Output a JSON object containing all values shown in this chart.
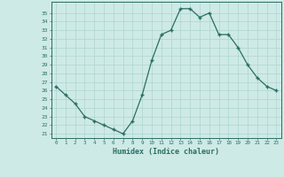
{
  "x": [
    0,
    1,
    2,
    3,
    4,
    5,
    6,
    7,
    8,
    9,
    10,
    11,
    12,
    13,
    14,
    15,
    16,
    17,
    18,
    19,
    20,
    21,
    22,
    23
  ],
  "y": [
    26.5,
    25.5,
    24.5,
    23.0,
    22.5,
    22.0,
    21.5,
    21.0,
    22.5,
    25.5,
    29.5,
    32.5,
    33.0,
    35.5,
    35.5,
    34.5,
    35.0,
    32.5,
    32.5,
    31.0,
    29.0,
    27.5,
    26.5,
    26.0
  ],
  "xlabel": "Humidex (Indice chaleur)",
  "line_color": "#2a6e63",
  "bg_color": "#ceeae6",
  "grid_color": "#aed4cf",
  "tick_color": "#2a6e63",
  "ylim": [
    21,
    36
  ],
  "xlim": [
    -0.5,
    23.5
  ],
  "yticks": [
    21,
    22,
    23,
    24,
    25,
    26,
    27,
    28,
    29,
    30,
    31,
    32,
    33,
    34,
    35
  ],
  "xtick_labels": [
    "0",
    "1",
    "2",
    "3",
    "4",
    "5",
    "6",
    "7",
    "8",
    "9",
    "10",
    "11",
    "12",
    "13",
    "14",
    "15",
    "16",
    "17",
    "18",
    "19",
    "20",
    "21",
    "22",
    "23"
  ]
}
